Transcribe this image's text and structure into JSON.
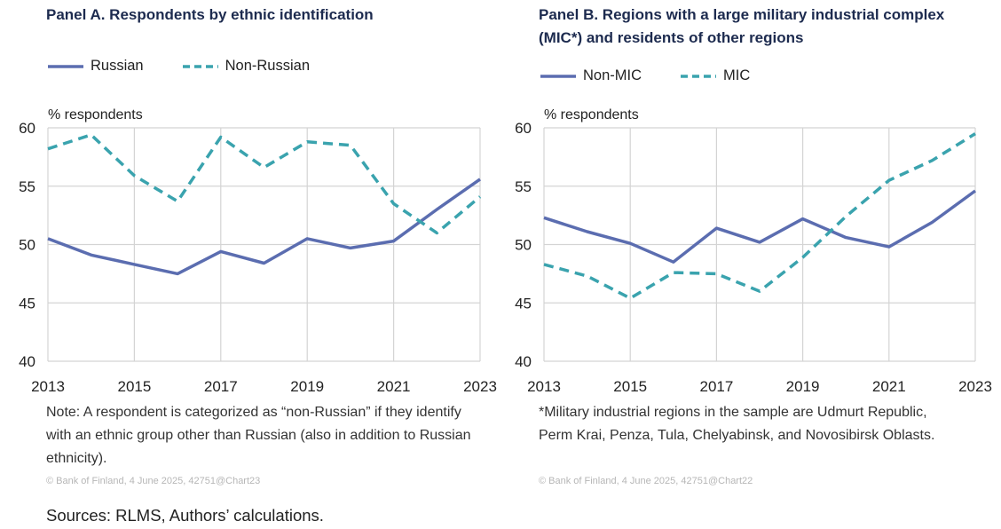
{
  "panels": [
    {
      "title": "Panel A. Respondents by ethnic identification",
      "legend": [
        {
          "name": "Russian",
          "style": "solid",
          "color": "#5b6db0"
        },
        {
          "name": "Non-Russian",
          "style": "dashed",
          "color": "#3aa3ae"
        }
      ],
      "note": "Note: A respondent is categorized as “non-Russian” if they identify with an ethnic group other than Russian (also in addition to Russian ethnicity).",
      "credit": "© Bank of Finland, 4 June 2025, 42751@Chart23"
    },
    {
      "title": "Panel B. Regions with a large military industrial complex (MIC*) and residents of other regions",
      "legend": [
        {
          "name": "Non-MIC",
          "style": "solid",
          "color": "#5b6db0"
        },
        {
          "name": "MIC",
          "style": "dashed",
          "color": "#3aa3ae"
        }
      ],
      "note": "*Military industrial regions in the sample are Udmurt Republic, Perm Krai, Penza, Tula, Chelyabinsk, and Novosibirsk Oblasts.",
      "credit": "© Bank of Finland, 4 June 2025, 42751@Chart22"
    }
  ],
  "sources": "Sources: RLMS, Authors’ calculations.",
  "chart_data": [
    {
      "type": "line",
      "title": "Panel A. Respondents by ethnic identification",
      "ylabel": "% respondents",
      "xlabel": "",
      "x": [
        2013,
        2014,
        2015,
        2016,
        2017,
        2018,
        2019,
        2020,
        2021,
        2022,
        2023
      ],
      "xticks": [
        "2013",
        "2015",
        "2017",
        "2019",
        "2021",
        "2023"
      ],
      "yticks": [
        "40",
        "45",
        "50",
        "55",
        "60"
      ],
      "xlim": [
        2013,
        2023
      ],
      "ylim": [
        40,
        60
      ],
      "grid": "vertical and horizontal",
      "legend_position": "top-left",
      "series": [
        {
          "name": "Russian",
          "color": "#5b6db0",
          "dash": "solid",
          "values": [
            50.5,
            49.1,
            48.3,
            47.5,
            49.4,
            48.4,
            50.5,
            49.7,
            50.3,
            53.0,
            55.6
          ]
        },
        {
          "name": "Non-Russian",
          "color": "#3aa3ae",
          "dash": "dashed",
          "values": [
            58.2,
            59.4,
            55.9,
            53.7,
            59.2,
            56.6,
            58.8,
            58.5,
            53.5,
            51.0,
            54.1
          ]
        }
      ]
    },
    {
      "type": "line",
      "title": "Panel B. Regions with a large military industrial complex (MIC*) and residents of other regions",
      "ylabel": "% respondents",
      "xlabel": "",
      "x": [
        2013,
        2014,
        2015,
        2016,
        2017,
        2018,
        2019,
        2020,
        2021,
        2022,
        2023
      ],
      "xticks": [
        "2013",
        "2015",
        "2017",
        "2019",
        "2021",
        "2023"
      ],
      "yticks": [
        "40",
        "45",
        "50",
        "55",
        "60"
      ],
      "xlim": [
        2013,
        2023
      ],
      "ylim": [
        40,
        60
      ],
      "grid": "vertical and horizontal",
      "legend_position": "top-left",
      "series": [
        {
          "name": "Non-MIC",
          "color": "#5b6db0",
          "dash": "solid",
          "values": [
            52.3,
            51.1,
            50.1,
            48.5,
            51.4,
            50.2,
            52.2,
            50.6,
            49.8,
            51.9,
            54.6
          ]
        },
        {
          "name": "MIC",
          "color": "#3aa3ae",
          "dash": "dashed",
          "values": [
            48.3,
            47.3,
            45.4,
            47.6,
            47.5,
            46.0,
            48.9,
            52.4,
            55.5,
            57.2,
            59.5
          ]
        }
      ]
    }
  ]
}
